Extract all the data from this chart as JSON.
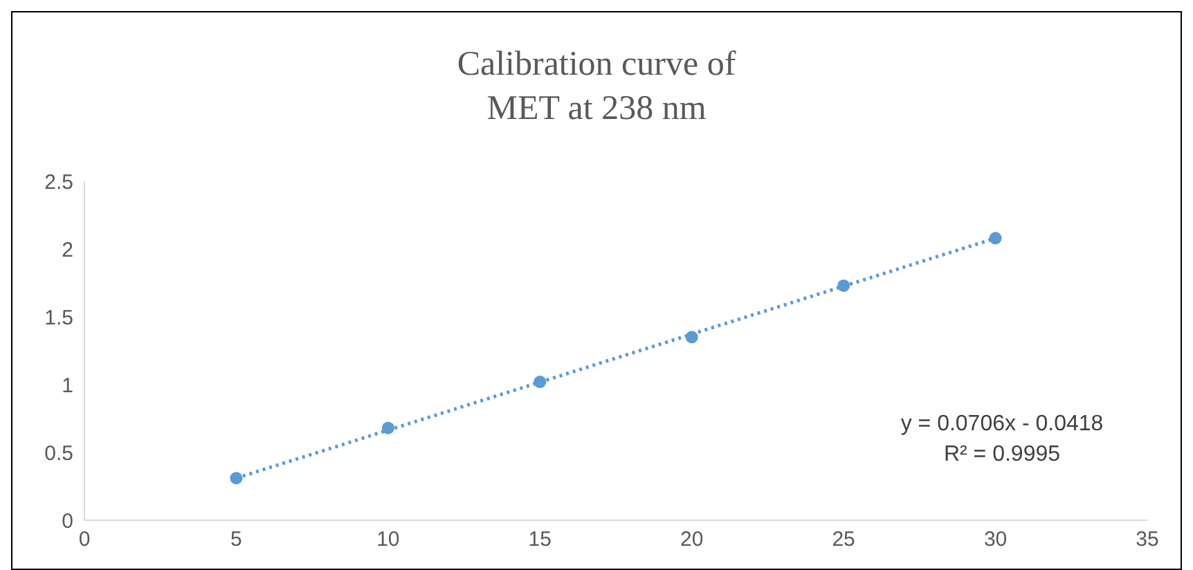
{
  "chart_data": {
    "type": "scatter",
    "title": "Calibration curve of MET at 238 nm",
    "series": [
      {
        "color": "#5b9bd5",
        "x": [
          5,
          10,
          15,
          20,
          25,
          30
        ],
        "values": [
          0.31,
          0.68,
          1.02,
          1.35,
          1.73,
          2.08
        ],
        "marker": "circle"
      },
      {
        "type": "line",
        "color": "#5b9bd5",
        "x": [
          5,
          30
        ],
        "values": [
          0.31,
          2.08
        ],
        "line_style": "dotted",
        "marker": "none"
      }
    ],
    "xlim": [
      0,
      35
    ],
    "xticks": [
      0,
      5,
      10,
      15,
      20,
      25,
      30,
      35
    ],
    "ylim": [
      0,
      2.5
    ],
    "yticks": [
      0,
      0.5,
      1,
      1.5,
      2,
      2.5
    ],
    "annotations": [
      "y = 0.0706x - 0.0418",
      "R² = 0.9995"
    ]
  }
}
